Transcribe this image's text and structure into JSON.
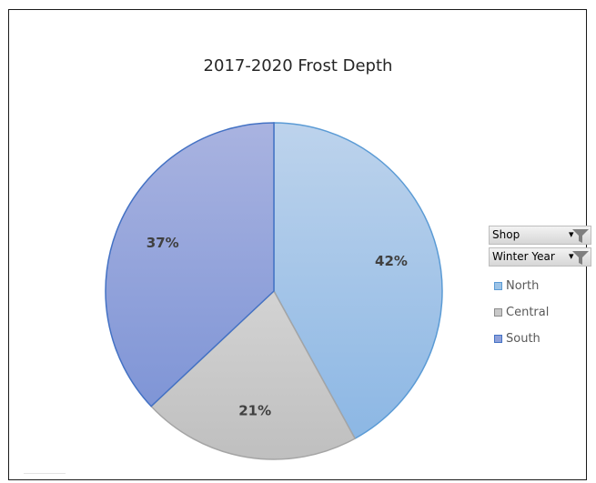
{
  "chart_data": {
    "type": "pie",
    "title": "2017-2020 Frost Depth",
    "categories": [
      "North",
      "Central",
      "South"
    ],
    "values": [
      42,
      21,
      37
    ],
    "labels": [
      "42%",
      "21%",
      "37%"
    ],
    "colors": [
      "#9dc3e6",
      "#c9c9c9",
      "#8ea0da"
    ],
    "legend_position": "right"
  },
  "filters": [
    {
      "label": "Shop",
      "icon": "funnel-icon"
    },
    {
      "label": "Winter Year",
      "icon": "funnel-icon"
    }
  ]
}
